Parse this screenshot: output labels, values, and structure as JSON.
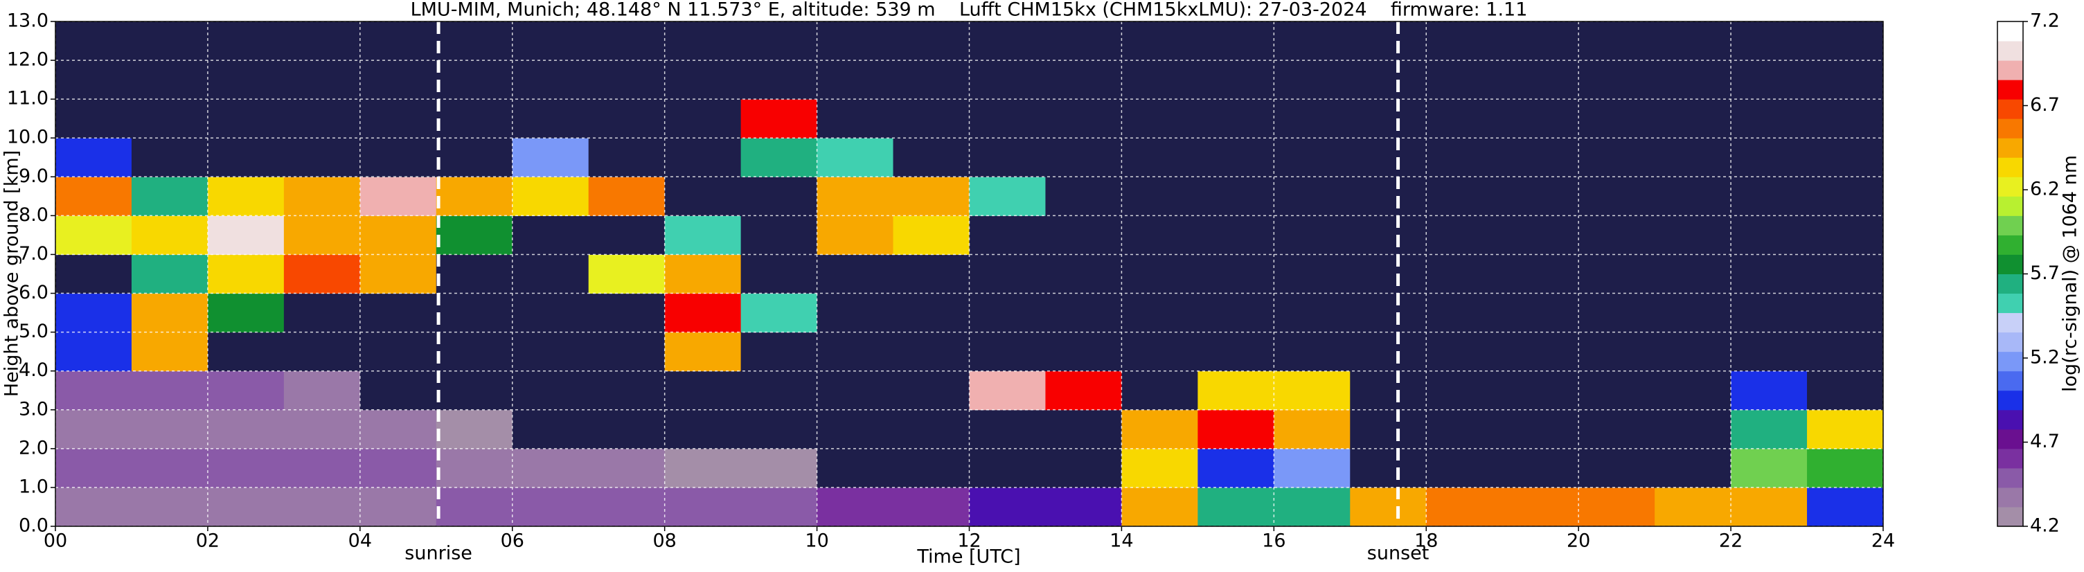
{
  "chart_data": {
    "type": "heatmap",
    "title": "LMU-MIM, Munich; 48.148° N 11.573° E, altitude: 539 m    Lufft CHM15kx (CHM15kxLMU): 27-03-2024    firmware: 1.11",
    "xlabel": "Time [UTC]",
    "ylabel": "Height above ground [km]",
    "colorbar_label": "log(rc-signal) @ 1064 nm",
    "xbins": [
      0,
      1,
      2,
      3,
      4,
      5,
      6,
      7,
      8,
      9,
      10,
      11,
      12,
      13,
      14,
      15,
      16,
      17,
      18,
      19,
      20,
      21,
      22,
      23,
      24
    ],
    "ybins": [
      0,
      1,
      2,
      3,
      4,
      5,
      6,
      7,
      8,
      9,
      10,
      11,
      12,
      13
    ],
    "z": [
      [
        4.4,
        4.4,
        4.4,
        4.4,
        4.4,
        4.5,
        4.5,
        4.5,
        4.5,
        4.5,
        4.6,
        4.6,
        4.8,
        4.8,
        6.5,
        5.6,
        5.6,
        6.4,
        6.6,
        6.6,
        6.6,
        6.5,
        6.5,
        4.9
      ],
      [
        4.5,
        4.5,
        4.5,
        4.5,
        4.5,
        4.4,
        4.4,
        4.4,
        4.3,
        4.3,
        4.0,
        4.0,
        4.0,
        4.0,
        6.3,
        5.0,
        5.2,
        4.0,
        4.0,
        4.0,
        4.0,
        4.0,
        6.0,
        5.9
      ],
      [
        4.4,
        4.4,
        4.4,
        4.4,
        4.4,
        4.3,
        4.0,
        4.0,
        4.0,
        4.0,
        4.0,
        4.0,
        4.0,
        4.0,
        6.4,
        6.8,
        6.5,
        4.0,
        4.0,
        4.0,
        4.0,
        4.0,
        5.6,
        6.3
      ],
      [
        4.5,
        4.5,
        4.5,
        4.4,
        4.0,
        4.0,
        4.0,
        4.0,
        4.0,
        4.0,
        4.0,
        4.0,
        6.9,
        6.8,
        4.0,
        6.3,
        6.3,
        4.0,
        4.0,
        4.0,
        4.0,
        4.0,
        5.0,
        4.0
      ],
      [
        4.9,
        6.4,
        4.0,
        4.0,
        4.0,
        4.0,
        4.0,
        4.0,
        6.4,
        4.0,
        4.0,
        4.0,
        4.0,
        4.0,
        4.0,
        4.0,
        4.0,
        4.0,
        4.0,
        4.0,
        4.0,
        4.0,
        4.0,
        4.0
      ],
      [
        5.0,
        6.5,
        5.8,
        4.0,
        4.0,
        4.0,
        4.0,
        4.0,
        6.8,
        5.5,
        4.0,
        4.0,
        4.0,
        4.0,
        4.0,
        4.0,
        4.0,
        4.0,
        4.0,
        4.0,
        4.0,
        4.0,
        4.0,
        4.0
      ],
      [
        4.0,
        5.6,
        6.3,
        6.7,
        6.4,
        4.0,
        4.0,
        6.2,
        6.5,
        4.0,
        4.0,
        4.0,
        4.0,
        4.0,
        4.0,
        4.0,
        4.0,
        4.0,
        4.0,
        4.0,
        4.0,
        4.0,
        4.0,
        4.0
      ],
      [
        6.2,
        6.3,
        7.0,
        6.5,
        6.5,
        5.8,
        4.0,
        4.0,
        5.5,
        4.0,
        6.4,
        6.3,
        4.0,
        4.0,
        4.0,
        4.0,
        4.0,
        4.0,
        4.0,
        4.0,
        4.0,
        4.0,
        4.0,
        4.0
      ],
      [
        6.6,
        5.6,
        6.3,
        6.4,
        6.9,
        6.5,
        6.3,
        6.6,
        4.0,
        4.0,
        6.5,
        6.5,
        5.5,
        4.0,
        4.0,
        4.0,
        4.0,
        4.0,
        4.0,
        4.0,
        4.0,
        4.0,
        4.0,
        4.0
      ],
      [
        5.0,
        4.0,
        4.0,
        4.0,
        4.0,
        4.0,
        5.2,
        4.0,
        4.0,
        5.6,
        5.5,
        4.0,
        4.0,
        4.0,
        4.0,
        4.0,
        4.0,
        4.0,
        4.0,
        4.0,
        4.0,
        4.0,
        4.0,
        4.0
      ],
      [
        4.0,
        4.0,
        4.0,
        4.0,
        4.0,
        4.0,
        4.0,
        4.0,
        4.0,
        6.8,
        4.0,
        4.0,
        4.0,
        4.0,
        4.0,
        4.0,
        4.0,
        4.0,
        4.0,
        4.0,
        4.0,
        4.0,
        4.0,
        4.0
      ],
      [
        4.0,
        4.0,
        4.0,
        4.0,
        4.0,
        4.0,
        4.0,
        4.0,
        4.0,
        4.0,
        4.0,
        4.0,
        4.0,
        4.0,
        4.0,
        4.0,
        4.0,
        4.0,
        4.0,
        4.0,
        4.0,
        4.0,
        4.0,
        4.0
      ],
      [
        4.0,
        4.0,
        4.0,
        4.0,
        4.0,
        4.0,
        4.0,
        4.0,
        4.0,
        4.0,
        4.0,
        4.0,
        4.0,
        4.0,
        4.0,
        4.0,
        4.0,
        4.0,
        4.0,
        4.0,
        4.0,
        4.0,
        4.0,
        4.0
      ]
    ],
    "xlim": [
      0,
      24
    ],
    "ylim": [
      0,
      13
    ],
    "xticks": [
      {
        "value": 0,
        "label": "00"
      },
      {
        "value": 2,
        "label": "02"
      },
      {
        "value": 4,
        "label": "04"
      },
      {
        "value": 6,
        "label": "06"
      },
      {
        "value": 8,
        "label": "08"
      },
      {
        "value": 10,
        "label": "10"
      },
      {
        "value": 12,
        "label": "12"
      },
      {
        "value": 14,
        "label": "14"
      },
      {
        "value": 16,
        "label": "16"
      },
      {
        "value": 18,
        "label": "18"
      },
      {
        "value": 20,
        "label": "20"
      },
      {
        "value": 22,
        "label": "22"
      },
      {
        "value": 24,
        "label": "24"
      }
    ],
    "yticks": [
      {
        "value": 0,
        "label": "0.0"
      },
      {
        "value": 1,
        "label": "1.0"
      },
      {
        "value": 2,
        "label": "2.0"
      },
      {
        "value": 3,
        "label": "3.0"
      },
      {
        "value": 4,
        "label": "4.0"
      },
      {
        "value": 5,
        "label": "5.0"
      },
      {
        "value": 6,
        "label": "6.0"
      },
      {
        "value": 7,
        "label": "7.0"
      },
      {
        "value": 8,
        "label": "8.0"
      },
      {
        "value": 9,
        "label": "9.0"
      },
      {
        "value": 10,
        "label": "10.0"
      },
      {
        "value": 11,
        "label": "11.0"
      },
      {
        "value": 12,
        "label": "12.0"
      },
      {
        "value": 13,
        "label": "13.0"
      }
    ],
    "clim": [
      4.2,
      7.2
    ],
    "cticks": [
      4.2,
      4.7,
      5.2,
      5.7,
      6.2,
      6.7,
      7.2
    ],
    "colormap": [
      "#a48ea8",
      "#9a78a8",
      "#8a5aa8",
      "#7a30a0",
      "#6a1090",
      "#4a10b0",
      "#1a30e8",
      "#4a6af0",
      "#7a98f8",
      "#a8b8f8",
      "#c8d0f8",
      "#40d0b0",
      "#20b080",
      "#109030",
      "#30b030",
      "#70d050",
      "#b8f030",
      "#e8f020",
      "#f8d800",
      "#f8a800",
      "#f87800",
      "#f84800",
      "#f80000",
      "#f0b0b0",
      "#f0e0e0",
      "#ffffff"
    ],
    "under_color": "#1e1e4a",
    "grid": true,
    "annotations": [
      {
        "text": "sunrise",
        "x": 5.03
      },
      {
        "text": "sunset",
        "x": 17.63
      }
    ]
  }
}
